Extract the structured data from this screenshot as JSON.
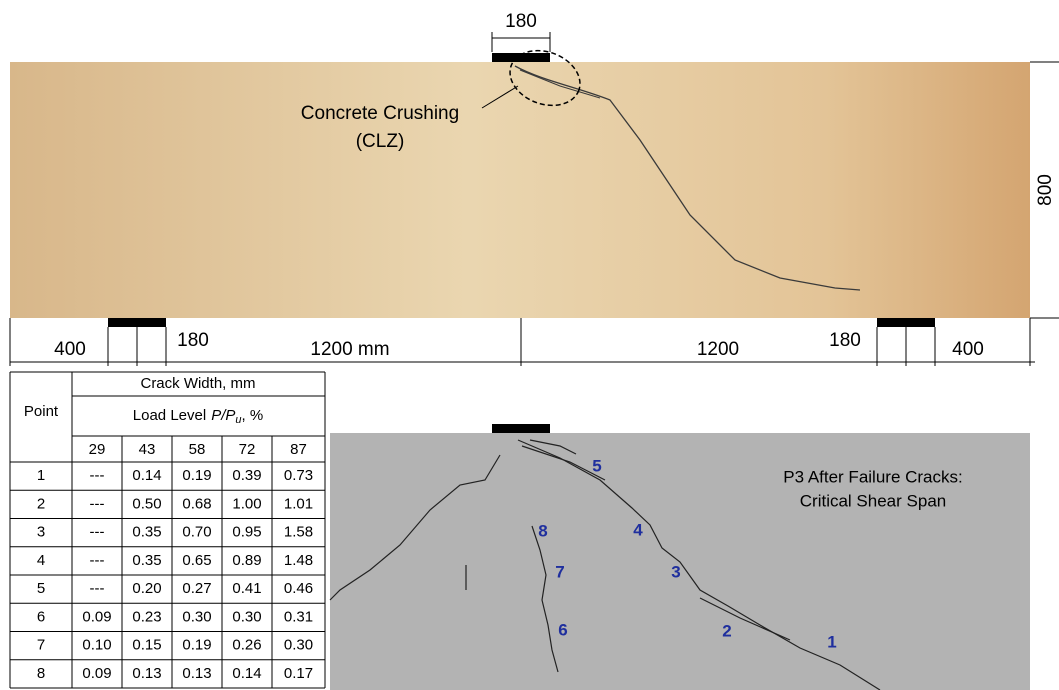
{
  "photo": {
    "top_dimension": "180",
    "height_dimension": "800",
    "annotation": [
      "Concrete Crushing",
      "(CLZ)"
    ],
    "bottom_dimensions": [
      "400",
      "180",
      "1200 mm",
      "1200",
      "180",
      "400"
    ]
  },
  "table": {
    "point_header": "Point",
    "group_header": "Crack Width, mm",
    "load_level_header": {
      "text": "Load Level",
      "variable": "P",
      "slash": "/P",
      "subscript": "u",
      "suffix": ", %"
    },
    "load_levels": [
      "29",
      "43",
      "58",
      "72",
      "87"
    ],
    "rows": [
      [
        "1",
        "---",
        "0.14",
        "0.19",
        "0.39",
        "0.73"
      ],
      [
        "2",
        "---",
        "0.50",
        "0.68",
        "1.00",
        "1.01"
      ],
      [
        "3",
        "---",
        "0.35",
        "0.70",
        "0.95",
        "1.58"
      ],
      [
        "4",
        "---",
        "0.35",
        "0.65",
        "0.89",
        "1.48"
      ],
      [
        "5",
        "---",
        "0.20",
        "0.27",
        "0.41",
        "0.46"
      ],
      [
        "6",
        "0.09",
        "0.23",
        "0.30",
        "0.30",
        "0.31"
      ],
      [
        "7",
        "0.10",
        "0.15",
        "0.19",
        "0.26",
        "0.30"
      ],
      [
        "8",
        "0.09",
        "0.13",
        "0.13",
        "0.14",
        "0.17"
      ]
    ]
  },
  "diagram": {
    "title": [
      "P3 After Failure Cracks:",
      "Critical Shear Span"
    ],
    "point_labels": [
      "1",
      "2",
      "3",
      "4",
      "5",
      "6",
      "7",
      "8"
    ]
  }
}
